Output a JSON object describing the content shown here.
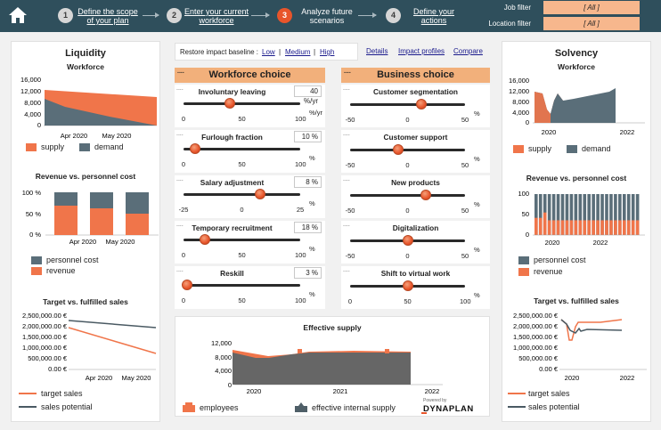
{
  "header": {
    "home_icon": "home-icon",
    "steps": [
      {
        "num": "1",
        "label1": "Define the scope",
        "label2": "of your plan"
      },
      {
        "num": "2",
        "label1": "Enter your current",
        "label2": "workforce"
      },
      {
        "num": "3",
        "label1": "Analyze future",
        "label2": "scenarios"
      },
      {
        "num": "4",
        "label1": "Define your",
        "label2": "actions"
      }
    ],
    "job_filter_label": "Job filter",
    "job_filter_value": "[ All ]",
    "location_filter_label": "Location filter",
    "location_filter_value": "[ All ]"
  },
  "colors": {
    "supply": "#f0754a",
    "demand": "#5a6e79",
    "header": "#2f4f5c",
    "accent": "#e8552b",
    "panel": "#f2b07b"
  },
  "liquidity": {
    "title": "Liquidity",
    "workforce_title": "Workforce",
    "y_ticks": [
      "16,000",
      "12,000",
      "8,000",
      "4,000",
      "0"
    ],
    "x_ticks": [
      "Apr 2020",
      "May 2020"
    ],
    "legend_supply": "supply",
    "legend_demand": "demand",
    "rev_title": "Revenue vs. personnel cost",
    "rev_y_ticks": [
      "100 %",
      "50 %",
      "0 %"
    ],
    "rev_x_ticks": [
      "Apr 2020",
      "May 2020"
    ],
    "legend_personnel": "personnel cost",
    "legend_revenue": "revenue",
    "target_title": "Target vs. fulfilled sales",
    "target_y_ticks": [
      "2,500,000.00 €",
      "2,000,000.00 €",
      "1,500,000.00 €",
      "1,000,000.00 €",
      "500,000.00 €",
      "0.00 €"
    ],
    "target_x_ticks": [
      "Apr 2020",
      "May 2020"
    ],
    "legend_target": "target sales",
    "legend_potential": "sales potential"
  },
  "baseline": {
    "label": "Restore impact baseline :",
    "low": "Low",
    "sep1": "|",
    "medium": "Medium",
    "sep2": "|",
    "high": "High"
  },
  "nav_links": {
    "details": "Details",
    "impact": "Impact profiles",
    "compare": "Compare"
  },
  "workforce_choice": {
    "title": "Workforce choice",
    "dots": "....",
    "rows": [
      {
        "label": "Involuntary leaving",
        "value": "40 %/yr",
        "unit": "%/yr",
        "ticks": [
          "0",
          "50",
          "100"
        ]
      },
      {
        "label": "Furlough fraction",
        "value": "10 %",
        "unit": "%",
        "ticks": [
          "0",
          "50",
          "100"
        ]
      },
      {
        "label": "Salary adjustment",
        "value": "8 %",
        "unit": "%",
        "ticks": [
          "-25",
          "0",
          "25"
        ]
      },
      {
        "label": "Temporary recruitment",
        "value": "18 %",
        "unit": "%",
        "ticks": [
          "0",
          "50",
          "100"
        ]
      },
      {
        "label": "Reskill",
        "value": "3 %",
        "unit": "%",
        "ticks": [
          "0",
          "50",
          "100"
        ]
      }
    ]
  },
  "business_choice": {
    "title": "Business choice",
    "dots": "....",
    "rows": [
      {
        "label": "Customer segmentation",
        "unit": "%",
        "ticks": [
          "-50",
          "0",
          "50"
        ]
      },
      {
        "label": "Customer support",
        "unit": "%",
        "ticks": [
          "-50",
          "0",
          "50"
        ]
      },
      {
        "label": "New products",
        "unit": "%",
        "ticks": [
          "-50",
          "0",
          "50"
        ]
      },
      {
        "label": "Digitalization",
        "unit": "%",
        "ticks": [
          "-50",
          "0",
          "50"
        ]
      },
      {
        "label": "Shift to virtual work",
        "unit": "%",
        "ticks": [
          "0",
          "50",
          "100"
        ]
      }
    ]
  },
  "effective_supply": {
    "title": "Effective supply",
    "y_ticks": [
      "12,000",
      "8,000",
      "4,000",
      "0"
    ],
    "x_ticks": [
      "2020",
      "2021",
      "2022"
    ],
    "legend_employees": "employees",
    "legend_internal": "effective internal supply",
    "powered_by": "Powered by",
    "brand": "DYNAPLAN"
  },
  "solvency": {
    "title": "Solvency",
    "workforce_title": "Workforce",
    "y_ticks": [
      "16,000",
      "12,000",
      "8,000",
      "4,000",
      "0"
    ],
    "x_ticks": [
      "2020",
      "2022"
    ],
    "legend_supply": "supply",
    "legend_demand": "demand",
    "rev_title": "Revenue vs. personnel cost",
    "rev_y_ticks": [
      "100",
      "50",
      "0"
    ],
    "rev_x_ticks": [
      "2020",
      "2022"
    ],
    "legend_personnel": "personnel cost",
    "legend_revenue": "revenue",
    "target_title": "Target vs. fulfilled sales",
    "target_y_ticks": [
      "2,500,000.00 €",
      "2,000,000.00 €",
      "1,500,000.00 €",
      "1,000,000.00 €",
      "500,000.00 €",
      "0.00 €"
    ],
    "target_x_ticks": [
      "2020",
      "2022"
    ],
    "legend_target": "target sales",
    "legend_potential": "sales potential"
  }
}
